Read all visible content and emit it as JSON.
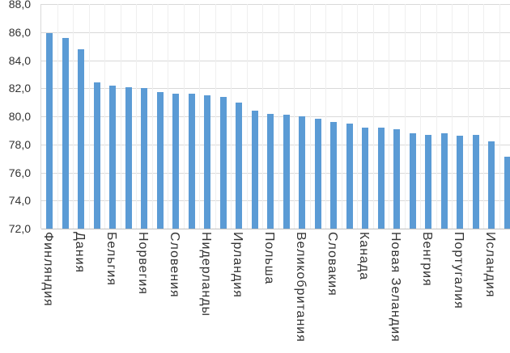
{
  "chart_data": {
    "type": "bar",
    "title": "",
    "xlabel": "",
    "ylabel": "",
    "categories": [
      "Финляндия",
      "",
      "Дания",
      "",
      "Бельгия",
      "",
      "Норвегия",
      "",
      "Словения",
      "",
      "Нидерланды",
      "",
      "Ирландия",
      "",
      "Польша",
      "",
      "Великобритания",
      "",
      "Словакия",
      "",
      "Канада",
      "",
      "Новая Зеландия",
      "",
      "Венгрия",
      "",
      "Португалия",
      "",
      "Исландия",
      ""
    ],
    "values": [
      85.9,
      85.6,
      84.8,
      82.4,
      82.2,
      82.1,
      82.0,
      81.7,
      81.6,
      81.6,
      81.5,
      81.4,
      81.0,
      80.4,
      80.2,
      80.1,
      80.0,
      79.8,
      79.6,
      79.5,
      79.2,
      79.2,
      79.1,
      78.8,
      78.7,
      78.8,
      78.6,
      78.7,
      78.2,
      77.1
    ],
    "ylim": [
      72,
      88
    ],
    "ytick_step": 2,
    "ytick_labels": [
      "88,0",
      "86,0",
      "84,0",
      "82,0",
      "80,0",
      "78,0",
      "76,0",
      "74,0",
      "72,0"
    ],
    "category_label_interval": 2,
    "legend": "none",
    "grid": "horizontal-major-and-vertical-minor",
    "colors": {
      "bar": "#5B9BD5",
      "gridline_major": "#D9D9D9",
      "gridline_minor": "#EFEFEF",
      "axis_line": "#BFBFBF",
      "axis_text": "#333333",
      "background": "#FFFFFF"
    }
  }
}
